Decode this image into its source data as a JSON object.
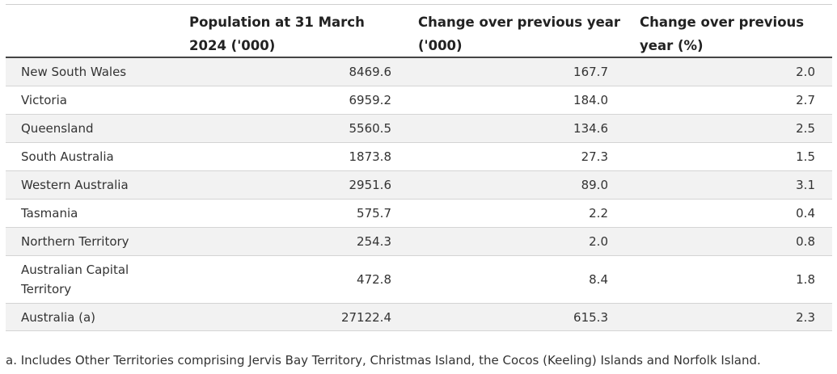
{
  "table": {
    "headers": [
      "",
      "Population at 31 March 2024 ('000)",
      "Change over previous year ('000)",
      "Change over previous year (%)"
    ],
    "rows": [
      {
        "name": "New South Wales",
        "population": "8469.6",
        "change": "167.7",
        "change_pct": "2.0"
      },
      {
        "name": "Victoria",
        "population": "6959.2",
        "change": "184.0",
        "change_pct": "2.7"
      },
      {
        "name": "Queensland",
        "population": "5560.5",
        "change": "134.6",
        "change_pct": "2.5"
      },
      {
        "name": "South Australia",
        "population": "1873.8",
        "change": "27.3",
        "change_pct": "1.5"
      },
      {
        "name": "Western Australia",
        "population": "2951.6",
        "change": "89.0",
        "change_pct": "3.1"
      },
      {
        "name": "Tasmania",
        "population": "575.7",
        "change": "2.2",
        "change_pct": "0.4"
      },
      {
        "name": "Northern Territory",
        "population": "254.3",
        "change": "2.0",
        "change_pct": "0.8"
      },
      {
        "name": "Australian Capital Territory",
        "population": "472.8",
        "change": "8.4",
        "change_pct": "1.8"
      },
      {
        "name": "Australia (a)",
        "population": "27122.4",
        "change": "615.3",
        "change_pct": "2.3"
      }
    ]
  },
  "footnote": "a. Includes Other Territories comprising Jervis Bay Territory, Christmas Island, the Cocos (Keeling) Islands and Norfolk Island.",
  "colors": {
    "row_shade": "#f2f2f2",
    "header_rule": "#444444",
    "row_rule": "#d4d4d4",
    "text": "#333333"
  }
}
